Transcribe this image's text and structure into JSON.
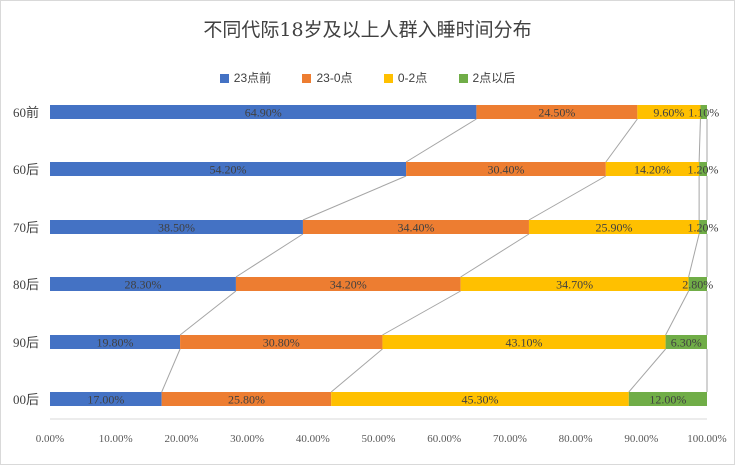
{
  "chart_data": {
    "type": "bar",
    "orientation": "horizontal-stacked-100",
    "title": "不同代际18岁及以上人群入睡时间分布",
    "categories": [
      "60前",
      "60后",
      "70后",
      "80后",
      "90后",
      "00后"
    ],
    "series": [
      {
        "name": "23点前",
        "color": "#4472c4",
        "values": [
          64.9,
          54.2,
          38.5,
          28.3,
          19.8,
          17.0
        ],
        "labels": [
          "64.90%",
          "54.20%",
          "38.50%",
          "28.30%",
          "19.80%",
          "17.00%"
        ]
      },
      {
        "name": "23-0点",
        "color": "#ed7d31",
        "values": [
          24.5,
          30.4,
          34.4,
          34.2,
          30.8,
          25.8
        ],
        "labels": [
          "24.50%",
          "30.40%",
          "34.40%",
          "34.20%",
          "30.80%",
          "25.80%"
        ]
      },
      {
        "name": "0-2点",
        "color": "#ffc000",
        "values": [
          9.6,
          14.2,
          25.9,
          34.7,
          43.1,
          45.3
        ],
        "labels": [
          "9.60%",
          "14.20%",
          "25.90%",
          "34.70%",
          "43.10%",
          "45.30%"
        ]
      },
      {
        "name": "2点以后",
        "color": "#70ad47",
        "values": [
          1.1,
          1.2,
          1.2,
          2.8,
          6.3,
          12.0
        ],
        "labels": [
          "1.10%",
          "1.20%",
          "1.20%",
          "2.80%",
          "6.30%",
          "12.00%"
        ]
      }
    ],
    "xlim": [
      0,
      100
    ],
    "x_ticks": [
      "0.00%",
      "10.00%",
      "20.00%",
      "30.00%",
      "40.00%",
      "50.00%",
      "60.00%",
      "70.00%",
      "80.00%",
      "90.00%",
      "100.00%"
    ],
    "series_lines": true,
    "grid": false,
    "legend_position": "top"
  }
}
